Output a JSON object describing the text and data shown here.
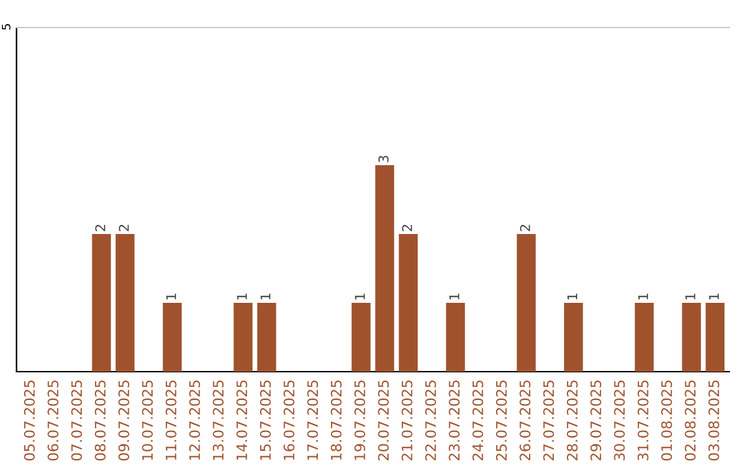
{
  "chart_data": {
    "type": "bar",
    "categories": [
      "05.07.2025",
      "06.07.2025",
      "07.07.2025",
      "08.07.2025",
      "09.07.2025",
      "10.07.2025",
      "11.07.2025",
      "12.07.2025",
      "13.07.2025",
      "14.07.2025",
      "15.07.2025",
      "16.07.2025",
      "17.07.2025",
      "18.07.2025",
      "19.07.2025",
      "20.07.2025",
      "21.07.2025",
      "22.07.2025",
      "23.07.2025",
      "24.07.2025",
      "25.07.2025",
      "26.07.2025",
      "27.07.2025",
      "28.07.2025",
      "29.07.2025",
      "30.07.2025",
      "31.07.2025",
      "01.08.2025",
      "02.08.2025",
      "03.08.2025"
    ],
    "values": [
      0,
      0,
      0,
      2,
      2,
      0,
      1,
      0,
      0,
      1,
      1,
      0,
      0,
      0,
      1,
      3,
      2,
      0,
      1,
      0,
      0,
      2,
      0,
      1,
      0,
      0,
      1,
      0,
      1,
      1
    ],
    "value_labels": [
      null,
      null,
      null,
      "2",
      "2",
      null,
      "1",
      null,
      null,
      "1",
      "1",
      null,
      null,
      null,
      "1",
      "3",
      "2",
      null,
      "1",
      null,
      null,
      "2",
      null,
      "1",
      null,
      null,
      "1",
      null,
      "1",
      "1"
    ],
    "color": "#a0522d",
    "ylim": [
      0,
      5
    ],
    "yticks": [
      5
    ]
  }
}
